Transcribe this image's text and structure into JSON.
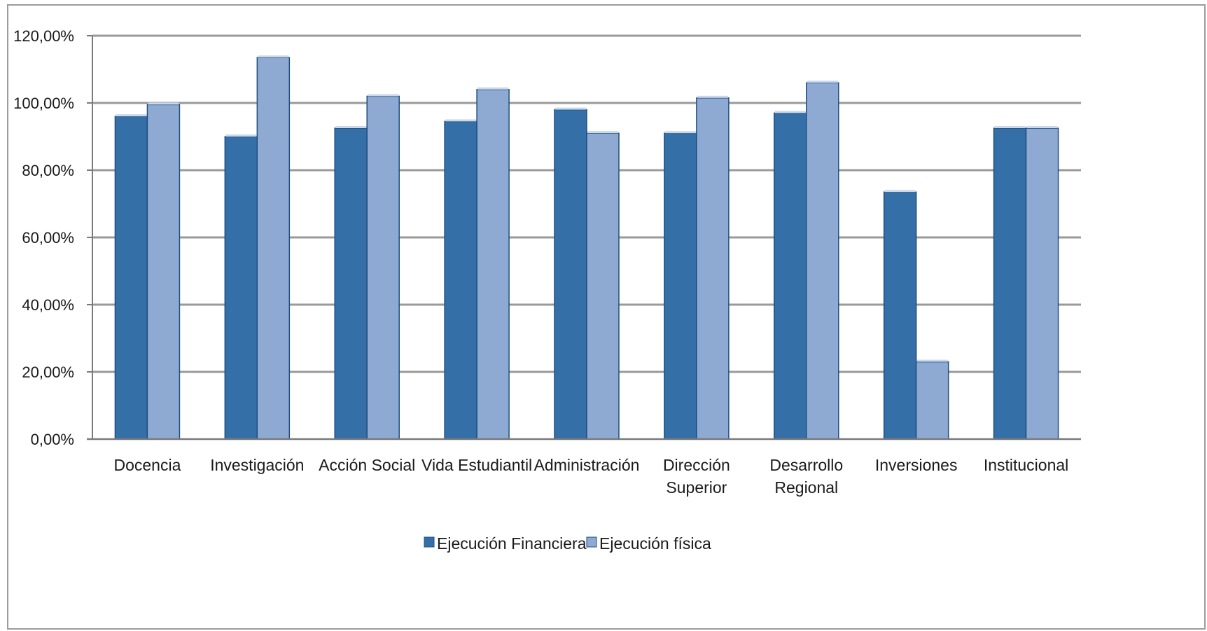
{
  "chart_data": {
    "type": "bar",
    "title": "",
    "xlabel": "",
    "ylabel": "",
    "ylim": [
      0,
      120
    ],
    "y_ticks": [
      0,
      20,
      40,
      60,
      80,
      100,
      120
    ],
    "y_tick_labels": [
      "0,00%",
      "20,00%",
      "40,00%",
      "60,00%",
      "80,00%",
      "100,00%",
      "120,00%"
    ],
    "grid": true,
    "legend_position": "bottom",
    "categories": [
      [
        "Docencia"
      ],
      [
        "Investigación"
      ],
      [
        "Acción Social"
      ],
      [
        "Vida Estudiantil"
      ],
      [
        "Administración"
      ],
      [
        "Dirección",
        "Superior"
      ],
      [
        "Desarrollo",
        "Regional"
      ],
      [
        "Inversiones"
      ],
      [
        "Institucional"
      ]
    ],
    "series": [
      {
        "name": "Ejecución Financiera",
        "color": "#3470a7",
        "values": [
          96,
          90,
          92.5,
          94.5,
          98,
          91,
          97,
          73.5,
          92.5
        ]
      },
      {
        "name": "Ejecución física",
        "color": "#8eaad2",
        "values": [
          99.5,
          113.5,
          102,
          104,
          91,
          101.5,
          106,
          23,
          92.5
        ]
      }
    ]
  }
}
